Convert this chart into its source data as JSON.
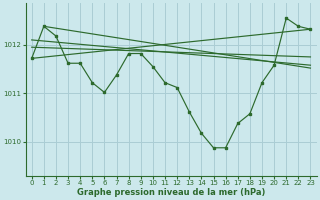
{
  "bg_color": "#cce8ec",
  "grid_color": "#aacdd4",
  "line_color": "#2d6a2d",
  "xlabel": "Graphe pression niveau de la mer (hPa)",
  "xlim": [
    -0.5,
    23.5
  ],
  "ylim": [
    1009.3,
    1012.85
  ],
  "yticks": [
    1010,
    1011,
    1012
  ],
  "xticks": [
    0,
    1,
    2,
    3,
    4,
    5,
    6,
    7,
    8,
    9,
    10,
    11,
    12,
    13,
    14,
    15,
    16,
    17,
    18,
    19,
    20,
    21,
    22,
    23
  ],
  "series_main": [
    [
      0,
      1011.72
    ],
    [
      1,
      1012.38
    ],
    [
      2,
      1012.18
    ],
    [
      3,
      1011.62
    ],
    [
      4,
      1011.62
    ],
    [
      5,
      1011.22
    ],
    [
      6,
      1011.02
    ],
    [
      7,
      1011.38
    ],
    [
      8,
      1011.82
    ],
    [
      9,
      1011.82
    ],
    [
      10,
      1011.55
    ],
    [
      11,
      1011.22
    ],
    [
      12,
      1011.12
    ],
    [
      13,
      1010.62
    ],
    [
      14,
      1010.18
    ],
    [
      15,
      1009.88
    ],
    [
      16,
      1009.88
    ],
    [
      17,
      1010.38
    ],
    [
      18,
      1010.58
    ],
    [
      19,
      1011.22
    ],
    [
      20,
      1011.58
    ],
    [
      21,
      1012.55
    ],
    [
      22,
      1012.38
    ],
    [
      23,
      1012.32
    ]
  ],
  "ref_lines": [
    [
      [
        0,
        1011.72
      ],
      [
        23,
        1012.32
      ]
    ],
    [
      [
        0,
        1011.95
      ],
      [
        23,
        1011.75
      ]
    ],
    [
      [
        0,
        1012.1
      ],
      [
        23,
        1011.58
      ]
    ],
    [
      [
        1,
        1012.38
      ],
      [
        23,
        1011.52
      ]
    ]
  ]
}
